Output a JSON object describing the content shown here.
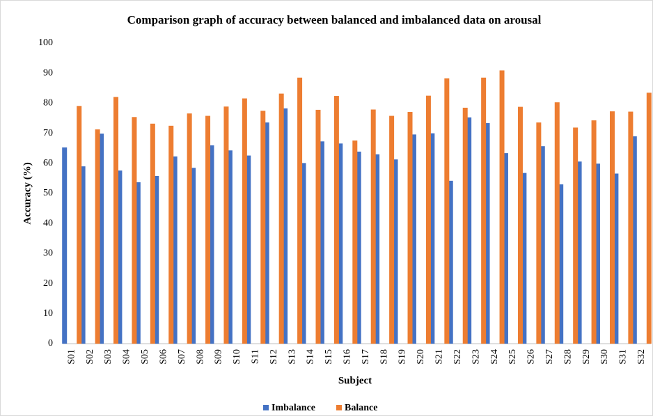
{
  "chart_data": {
    "type": "bar",
    "title": "Comparison graph of accuracy between balanced and imbalanced data on arousal",
    "x_label": "Subject",
    "y_label": "Accuracy (%)",
    "categories": [
      "S01",
      "S02",
      "S03",
      "S04",
      "S05",
      "S06",
      "S07",
      "S08",
      "S09",
      "S10",
      "S11",
      "S12",
      "S13",
      "S14",
      "S15",
      "S16",
      "S17",
      "S18",
      "S19",
      "S20",
      "S21",
      "S22",
      "S23",
      "S24",
      "S25",
      "S26",
      "S27",
      "S28",
      "S29",
      "S30",
      "S31",
      "S32"
    ],
    "series": [
      {
        "name": "Imbalance",
        "color": "#4472c4",
        "values": [
          65.3,
          59,
          69.9,
          57.6,
          53.7,
          55.8,
          62.3,
          58.5,
          66,
          64.3,
          62.6,
          73.6,
          78.3,
          60.1,
          67.3,
          66.6,
          63.9,
          63,
          61.3,
          69.6,
          70,
          54.2,
          75.3,
          73.4,
          63.4,
          56.8,
          65.7,
          53,
          60.6,
          59.9,
          56.6,
          69
        ]
      },
      {
        "name": "Balance",
        "color": "#ed7d31",
        "values": [
          79.1,
          71.3,
          82.1,
          75.4,
          73.2,
          72.5,
          76.6,
          75.8,
          78.9,
          81.6,
          77.5,
          83.2,
          88.5,
          77.8,
          82.4,
          67.6,
          77.9,
          75.8,
          77.1,
          82.5,
          88.3,
          78.5,
          88.5,
          90.9,
          78.8,
          73.6,
          80.3,
          71.9,
          74.3,
          77.3,
          77.2,
          83.5
        ]
      }
    ],
    "ylim": [
      0,
      100
    ],
    "yticks": [
      0,
      10,
      20,
      30,
      40,
      50,
      60,
      70,
      80,
      90,
      100
    ],
    "grid": false,
    "legend": "bottom"
  }
}
